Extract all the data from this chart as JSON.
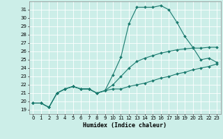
{
  "xlabel": "Humidex (Indice chaleur)",
  "ylabel": "",
  "bg_color": "#cceee8",
  "grid_color": "#ffffff",
  "line_color": "#1a7a6e",
  "xlim": [
    -0.5,
    23.5
  ],
  "ylim": [
    18.5,
    32.0
  ],
  "xticks": [
    0,
    1,
    2,
    3,
    4,
    5,
    6,
    7,
    8,
    9,
    10,
    11,
    12,
    13,
    14,
    15,
    16,
    17,
    18,
    19,
    20,
    21,
    22,
    23
  ],
  "yticks": [
    19,
    20,
    21,
    22,
    23,
    24,
    25,
    26,
    27,
    28,
    29,
    30,
    31
  ],
  "line1_x": [
    0,
    1,
    2,
    3,
    4,
    5,
    6,
    7,
    8,
    9,
    10,
    11,
    12,
    13,
    14,
    15,
    16,
    17,
    18,
    19,
    20,
    21,
    22,
    23
  ],
  "line1_y": [
    19.8,
    19.8,
    19.3,
    21.0,
    21.5,
    21.8,
    21.5,
    21.5,
    21.0,
    21.3,
    23.2,
    25.3,
    29.3,
    31.3,
    31.3,
    31.3,
    31.5,
    31.0,
    29.5,
    27.8,
    26.5,
    25.0,
    25.2,
    24.7
  ],
  "line2_x": [
    0,
    1,
    2,
    3,
    4,
    5,
    6,
    7,
    8,
    9,
    10,
    11,
    12,
    13,
    14,
    15,
    16,
    17,
    18,
    19,
    20,
    21,
    22,
    23
  ],
  "line2_y": [
    19.8,
    19.8,
    19.3,
    21.0,
    21.5,
    21.8,
    21.5,
    21.5,
    21.0,
    21.3,
    22.0,
    23.0,
    24.0,
    24.8,
    25.2,
    25.5,
    25.8,
    26.0,
    26.2,
    26.3,
    26.4,
    26.4,
    26.5,
    26.5
  ],
  "line3_x": [
    0,
    1,
    2,
    3,
    4,
    5,
    6,
    7,
    8,
    9,
    10,
    11,
    12,
    13,
    14,
    15,
    16,
    17,
    18,
    19,
    20,
    21,
    22,
    23
  ],
  "line3_y": [
    19.8,
    19.8,
    19.3,
    21.0,
    21.5,
    21.8,
    21.5,
    21.5,
    21.0,
    21.3,
    21.5,
    21.5,
    21.8,
    22.0,
    22.2,
    22.5,
    22.8,
    23.0,
    23.3,
    23.5,
    23.8,
    24.0,
    24.2,
    24.5
  ],
  "marker": "D",
  "markersize": 2.0,
  "linewidth": 0.8,
  "tick_labelsize": 5.0,
  "xlabel_fontsize": 6.0
}
